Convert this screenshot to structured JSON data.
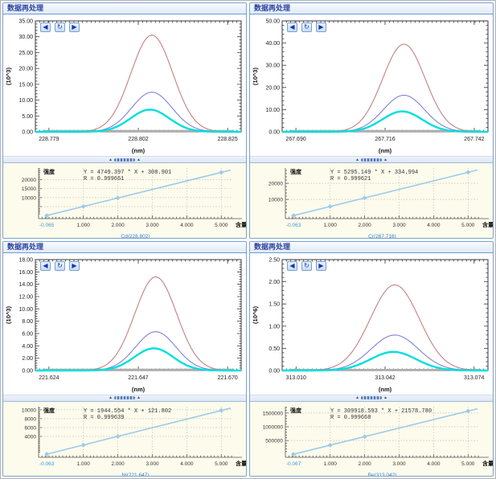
{
  "window": {
    "title": "数据再处理"
  },
  "toolbar": {
    "prev": "◀",
    "refresh": "↻",
    "next": "▶"
  },
  "labels": {
    "intensity": "强度",
    "content_axis": "含量(u"
  },
  "colors": {
    "header_text": "#2b3f9e",
    "panel_border": "#7ba2cf",
    "cal_bg": "#fdfbec",
    "cal_line": "#9dcbea",
    "curve_high": "#c38181",
    "curve_mid": "#8080d8",
    "curve_low": "#00dede",
    "curve_blank": "#aeaeae",
    "element_label": "#2d7fd3",
    "blank_tick_label": "#3a9ad9"
  },
  "chart_data": [
    {
      "id": "cd-spectrum",
      "type": "line",
      "xlabel": "(nm)",
      "ylabel": "(10^3)",
      "xlim": [
        228.7755,
        228.8285
      ],
      "ylim": [
        0,
        35
      ],
      "y_step": 5,
      "x_ticks": [
        "228.779",
        "228.802",
        "228.825"
      ],
      "series": [
        {
          "name": "blank",
          "color": "#aeaeae",
          "flat": true,
          "peak": 0.25,
          "width": 2.6
        },
        {
          "name": "std-high",
          "color": "#c38181",
          "peak": 30.5,
          "center": 228.8055,
          "sigma": 0.0054,
          "width": 1.1
        },
        {
          "name": "std-mid",
          "color": "#8080d8",
          "peak": 12.5,
          "center": 228.8055,
          "sigma": 0.0052,
          "width": 1.1
        },
        {
          "name": "std-low",
          "color": "#00dede",
          "peak": 7.0,
          "center": 228.805,
          "sigma": 0.005,
          "width": 2.4
        }
      ]
    },
    {
      "id": "cd-calibration",
      "type": "scatter",
      "element_label": "Cd(228.802)",
      "equation": "Y = 4749.397 * X + 308.901",
      "r": "R = 0.999661",
      "slope": 4749.397,
      "intercept": 308.901,
      "points_x": [
        -0.065,
        1,
        2,
        5
      ],
      "points_y": [
        0,
        5058,
        9808,
        24056
      ],
      "x_ticks": [
        "-0.065",
        "1.000",
        "2.000",
        "3.000",
        "4.000",
        "5.000"
      ],
      "y_ticks": [
        10000,
        15000,
        20000
      ],
      "grid_y": [
        5000,
        10000,
        15000,
        20000
      ],
      "xlim": [
        -0.3,
        5.32
      ],
      "ylim": [
        -1700,
        26500
      ]
    },
    {
      "id": "cr-spectrum",
      "type": "line",
      "xlabel": "(nm)",
      "ylabel": "(10^3)",
      "xlim": [
        267.686,
        267.746
      ],
      "ylim": [
        0,
        50
      ],
      "y_step": 10,
      "x_ticks": [
        "267.690",
        "267.716",
        "267.742"
      ],
      "series": [
        {
          "name": "blank",
          "color": "#aeaeae",
          "flat": true,
          "peak": 0.35,
          "width": 2.6
        },
        {
          "name": "std-high",
          "color": "#c38181",
          "peak": 39.5,
          "center": 267.7215,
          "sigma": 0.0062,
          "width": 1.1
        },
        {
          "name": "std-mid",
          "color": "#8080d8",
          "peak": 16.5,
          "center": 267.7215,
          "sigma": 0.006,
          "width": 1.1
        },
        {
          "name": "std-low",
          "color": "#00dede",
          "peak": 9.2,
          "center": 267.721,
          "sigma": 0.0058,
          "width": 2.4
        }
      ]
    },
    {
      "id": "cr-calibration",
      "type": "scatter",
      "element_label": "Cr(267.716)",
      "equation": "Y = 5295.149 * X + 334.994",
      "r": "R = 0.999621",
      "slope": 5295.149,
      "intercept": 334.994,
      "points_x": [
        -0.063,
        1,
        2,
        5
      ],
      "points_y": [
        1,
        5630,
        10925,
        26811
      ],
      "x_ticks": [
        "-0.063",
        "1.000",
        "2.000",
        "3.000",
        "4.000",
        "5.000"
      ],
      "y_ticks": [
        10000,
        20000
      ],
      "grid_y": [
        10000,
        20000
      ],
      "xlim": [
        -0.3,
        5.32
      ],
      "ylim": [
        -1900,
        29500
      ]
    },
    {
      "id": "ni-spectrum",
      "type": "line",
      "xlabel": "(nm)",
      "ylabel": "(10^3)",
      "xlim": [
        221.6205,
        221.6735
      ],
      "ylim": [
        0,
        18
      ],
      "y_step": 2,
      "x_ticks": [
        "221.624",
        "221.647",
        "221.670"
      ],
      "series": [
        {
          "name": "blank",
          "color": "#aeaeae",
          "flat": true,
          "peak": 0.13,
          "width": 2.6
        },
        {
          "name": "std-high",
          "color": "#c38181",
          "peak": 15.2,
          "center": 221.6515,
          "sigma": 0.0054,
          "width": 1.1
        },
        {
          "name": "std-mid",
          "color": "#8080d8",
          "peak": 6.3,
          "center": 221.6515,
          "sigma": 0.0052,
          "width": 1.1
        },
        {
          "name": "std-low",
          "color": "#00dede",
          "peak": 3.6,
          "center": 221.651,
          "sigma": 0.005,
          "width": 2.4
        }
      ]
    },
    {
      "id": "ni-calibration",
      "type": "scatter",
      "element_label": "Ni(221.647)",
      "equation": "Y = 1944.554 * X + 121.802",
      "r": "R = 0.999639",
      "slope": 1944.554,
      "intercept": 121.802,
      "points_x": [
        -0.063,
        1,
        2,
        5
      ],
      "points_y": [
        0,
        2066,
        4011,
        9845
      ],
      "x_ticks": [
        "-0.063",
        "1.000",
        "2.000",
        "3.000",
        "4.000",
        "5.000"
      ],
      "y_ticks": [
        4000,
        6000,
        8000,
        10000
      ],
      "grid_y": [
        4000,
        6000,
        8000,
        10000
      ],
      "xlim": [
        -0.3,
        5.32
      ],
      "ylim": [
        -700,
        10700
      ]
    },
    {
      "id": "be-spectrum",
      "type": "line",
      "xlabel": "(nm)",
      "ylabel": "(10^6)",
      "xlim": [
        313.005,
        313.079
      ],
      "ylim": [
        0,
        2.5
      ],
      "y_step": 0.5,
      "x_ticks": [
        "313.010",
        "313.042",
        "313.074"
      ],
      "series": [
        {
          "name": "blank",
          "color": "#aeaeae",
          "flat": true,
          "peak": 0.016,
          "width": 2.2
        },
        {
          "name": "std-high",
          "color": "#c38181",
          "peak": 1.93,
          "center": 313.0455,
          "sigma": 0.0088,
          "width": 1.1
        },
        {
          "name": "std-mid",
          "color": "#8080d8",
          "peak": 0.8,
          "center": 313.0455,
          "sigma": 0.0085,
          "width": 1.1
        },
        {
          "name": "std-low",
          "color": "#00dede",
          "peak": 0.42,
          "center": 313.045,
          "sigma": 0.0082,
          "width": 2.4
        }
      ]
    },
    {
      "id": "be-calibration",
      "type": "scatter",
      "element_label": "Be(313.042)",
      "equation": "Y = 309918.593 * X + 21578.780",
      "r": "R = 0.999668",
      "slope": 309918.593,
      "intercept": 21578.78,
      "points_x": [
        -0.067,
        1,
        2,
        5
      ],
      "points_y": [
        815,
        331497,
        641415,
        1571171
      ],
      "x_ticks": [
        "-0.067",
        "1.000",
        "2.000",
        "3.000",
        "4.000",
        "5.000"
      ],
      "y_ticks": [
        500000,
        1000000,
        1500000
      ],
      "grid_y": [
        500000,
        1000000,
        1500000
      ],
      "xlim": [
        -0.3,
        5.32
      ],
      "ylim": [
        -110000,
        1730000
      ]
    }
  ]
}
